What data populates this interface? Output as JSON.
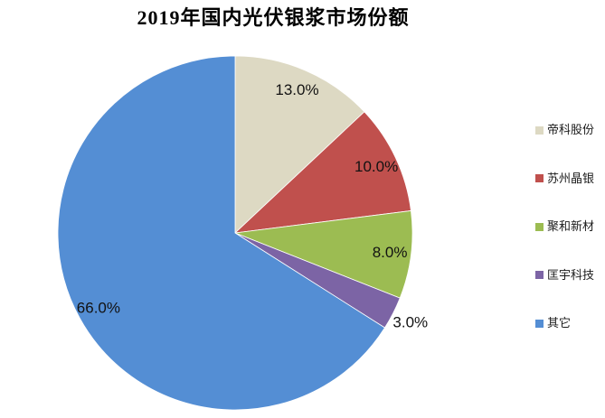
{
  "chart_data": {
    "type": "pie",
    "title": "2019年国内光伏银浆市场份额",
    "legend_position": "right",
    "direction": "clockwise",
    "start_angle_deg": 0,
    "total": 100,
    "label_color": "#121212",
    "slice_border_color": "#ffffff",
    "series": [
      {
        "label": "帝科股份",
        "value": 13.0,
        "data_label": "13.0%",
        "color": "#DDD9C3",
        "label_inside": true
      },
      {
        "label": "苏州晶银",
        "value": 10.0,
        "data_label": "10.0%",
        "color": "#C0504D",
        "label_inside": true
      },
      {
        "label": "聚和新材",
        "value": 8.0,
        "data_label": "8.0%",
        "color": "#9CBC52",
        "label_inside": true
      },
      {
        "label": "匡宇科技",
        "value": 3.0,
        "data_label": "3.0%",
        "color": "#7C64A5",
        "label_inside": false
      },
      {
        "label": "其它",
        "value": 66.0,
        "data_label": "66.0%",
        "color": "#548ED4",
        "label_inside": true
      }
    ]
  }
}
